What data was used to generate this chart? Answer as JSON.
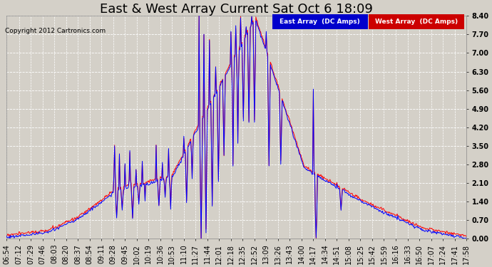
{
  "title": "East & West Array Current Sat Oct 6 18:09",
  "copyright": "Copyright 2012 Cartronics.com",
  "east_label": "East Array  (DC Amps)",
  "west_label": "West Array  (DC Amps)",
  "east_color": "#0000ff",
  "west_color": "#ff0000",
  "bg_color": "#d4d0c8",
  "plot_bg": "#d4d0c8",
  "grid_color": "#aaaaaa",
  "ylim": [
    0.0,
    8.4
  ],
  "yticks": [
    0.0,
    0.7,
    1.4,
    2.1,
    2.8,
    3.5,
    4.2,
    4.9,
    5.6,
    6.3,
    7.0,
    7.7,
    8.4
  ],
  "title_fontsize": 13,
  "tick_fontsize": 7,
  "xtick_labels": [
    "06:54",
    "07:12",
    "07:29",
    "07:46",
    "08:03",
    "08:20",
    "08:37",
    "08:54",
    "09:11",
    "09:28",
    "09:45",
    "10:02",
    "10:19",
    "10:36",
    "10:53",
    "11:10",
    "11:27",
    "11:44",
    "12:01",
    "12:18",
    "12:35",
    "12:52",
    "13:09",
    "13:26",
    "13:43",
    "14:00",
    "14:17",
    "14:34",
    "14:51",
    "15:08",
    "15:25",
    "15:42",
    "15:59",
    "16:16",
    "16:33",
    "16:50",
    "17:07",
    "17:24",
    "17:41",
    "17:58"
  ]
}
